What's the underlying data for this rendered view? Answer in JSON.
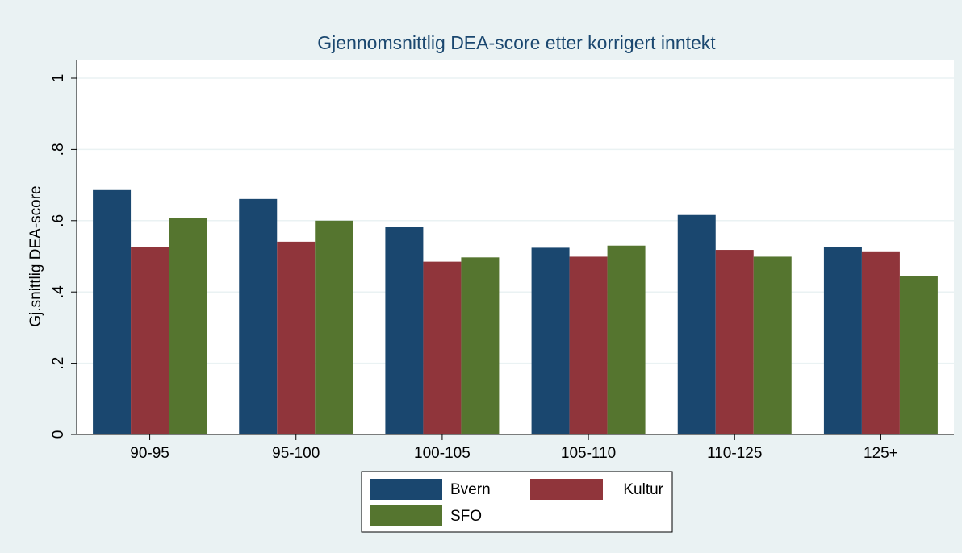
{
  "chart_data": {
    "type": "bar",
    "title": "Gjennomsnittlig DEA-score etter korrigert inntekt",
    "y_label": "Gj.snittlig DEA-score",
    "categories": [
      "90-95",
      "95-100",
      "100-105",
      "105-110",
      "110-125",
      "125+"
    ],
    "series": [
      {
        "name": "Bvern",
        "color": "#1a476f",
        "values": [
          0.686,
          0.661,
          0.583,
          0.524,
          0.616,
          0.525
        ]
      },
      {
        "name": "Kultur",
        "color": "#90353b",
        "values": [
          0.525,
          0.541,
          0.485,
          0.499,
          0.518,
          0.514
        ]
      },
      {
        "name": "SFO",
        "color": "#55752f",
        "values": [
          0.608,
          0.6,
          0.497,
          0.53,
          0.499,
          0.445
        ]
      }
    ],
    "ylim": [
      0,
      1
    ],
    "yticks": [
      0,
      {
        "value": 0.2,
        "label": ".2"
      },
      {
        "value": 0.4,
        "label": ".4"
      },
      {
        "value": 0.6,
        "label": ".6"
      },
      {
        "value": 0.8,
        "label": ".8"
      },
      1
    ],
    "grid": true
  }
}
